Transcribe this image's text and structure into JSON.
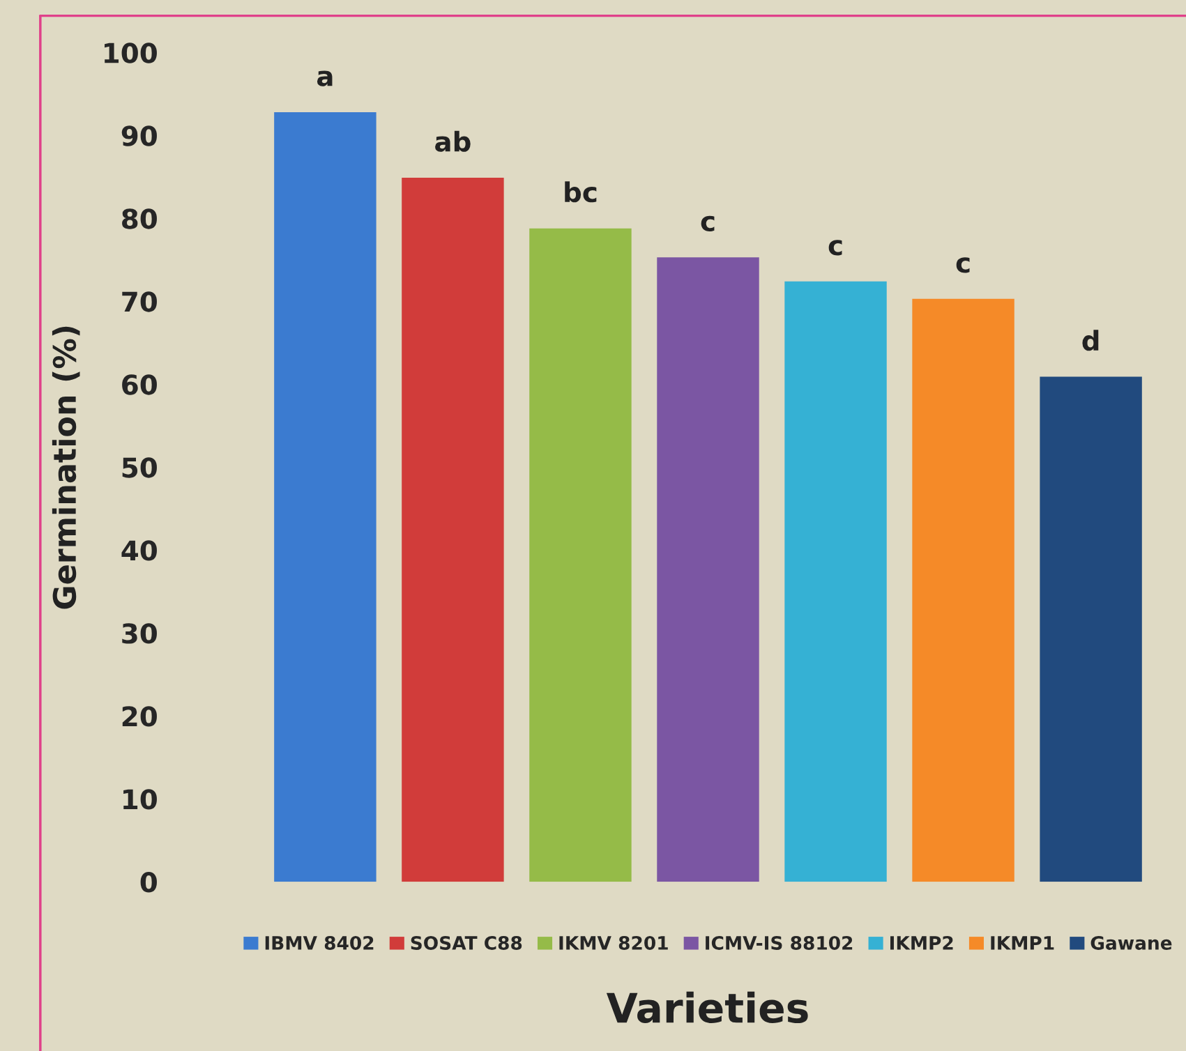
{
  "chart_data": {
    "type": "bar",
    "ylabel": "Germination (%)",
    "xlabel": "Varieties",
    "stacked": true,
    "categories": [
      null,
      null,
      null,
      null,
      null,
      null,
      null
    ],
    "series": [
      {
        "name": "IBMV 8402",
        "color": "#3b7bd0",
        "values": [
          92.8,
          null,
          null,
          null,
          null,
          null,
          null
        ],
        "value_labels": [
          "a",
          null,
          null,
          null,
          null,
          null,
          null
        ]
      },
      {
        "name": "SOSAT C88",
        "color": "#d13c3a",
        "values": [
          null,
          84.9,
          null,
          null,
          null,
          null,
          null
        ],
        "value_labels": [
          null,
          "ab",
          null,
          null,
          null,
          null,
          null
        ]
      },
      {
        "name": "IKMV 8201",
        "color": "#95bb48",
        "values": [
          null,
          null,
          78.8,
          null,
          null,
          null,
          null
        ],
        "value_labels": [
          null,
          null,
          "bc",
          null,
          null,
          null,
          null
        ]
      },
      {
        "name": "ICMV-IS 88102",
        "color": "#7b56a3",
        "values": [
          null,
          null,
          null,
          75.3,
          null,
          null,
          null
        ],
        "value_labels": [
          null,
          null,
          null,
          "c",
          null,
          null,
          null
        ]
      },
      {
        "name": "IKMP2",
        "color": "#35b1d4",
        "values": [
          null,
          null,
          null,
          null,
          72.4,
          null,
          null
        ],
        "value_labels": [
          null,
          null,
          null,
          null,
          "c",
          null,
          null
        ]
      },
      {
        "name": "IKMP1",
        "color": "#f58a28",
        "values": [
          null,
          null,
          null,
          null,
          null,
          70.3,
          null
        ],
        "value_labels": [
          null,
          null,
          null,
          null,
          null,
          "c",
          null
        ]
      },
      {
        "name": "Gawane",
        "color": "#214a7e",
        "values": [
          null,
          null,
          null,
          null,
          null,
          null,
          60.9
        ],
        "value_labels": [
          null,
          null,
          null,
          null,
          null,
          null,
          "d"
        ]
      }
    ],
    "ylim": [
      0,
      100
    ],
    "yticks": [
      0,
      10,
      20,
      30,
      40,
      50,
      60,
      70,
      80,
      90,
      100
    ],
    "tick_labels": "y",
    "grid": false,
    "legend": "bottom"
  }
}
